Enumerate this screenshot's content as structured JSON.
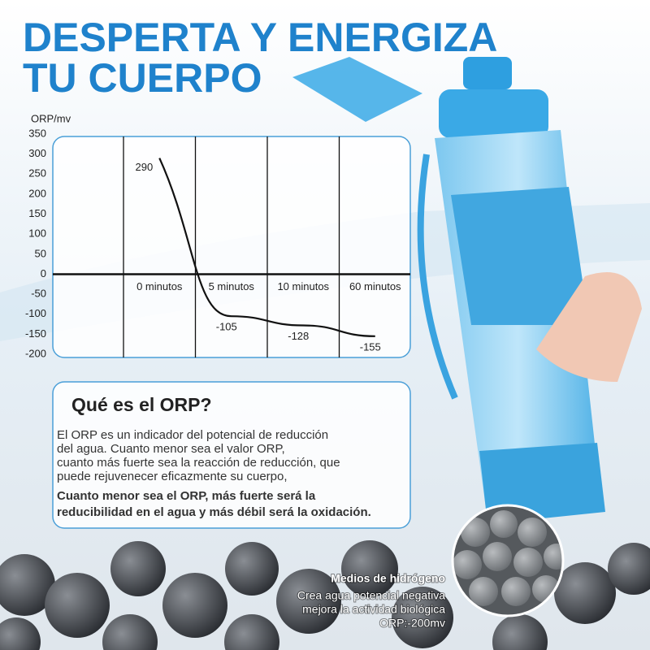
{
  "header": {
    "title_lines": [
      "DESPERTA Y ENERGIZA",
      "TU CUERPO"
    ]
  },
  "chart_data": {
    "type": "line",
    "ylabel": "ORP/mv",
    "categories": [
      "0 minutos",
      "5 minutos",
      "10 minutos",
      "60 minutos"
    ],
    "values": [
      290,
      -105,
      -128,
      -155
    ],
    "color": "#111111",
    "ylim": [
      -200,
      350
    ],
    "yticks": [
      -200,
      -150,
      -100,
      -50,
      0,
      50,
      100,
      150,
      200,
      250,
      300,
      350
    ],
    "grid": false
  },
  "info": {
    "heading": "Qué es el ORP?",
    "paragraph": [
      "El ORP es un indicador del potencial de reducción",
      "del agua. Cuanto menor sea el valor ORP,",
      "cuanto más fuerte sea la reacción de reducción, que",
      "puede rejuvenecer eficazmente su cuerpo,"
    ],
    "bold": [
      "Cuanto menor sea el ORP, más fuerte será la",
      "reducibilidad en el agua y más débil será la oxidación."
    ]
  },
  "caption": {
    "heading": "Medios de hidrógeno",
    "lines": [
      "Crea agua potencial negativa",
      "mejora la actividad biológica",
      "ORP:-200mv"
    ]
  }
}
